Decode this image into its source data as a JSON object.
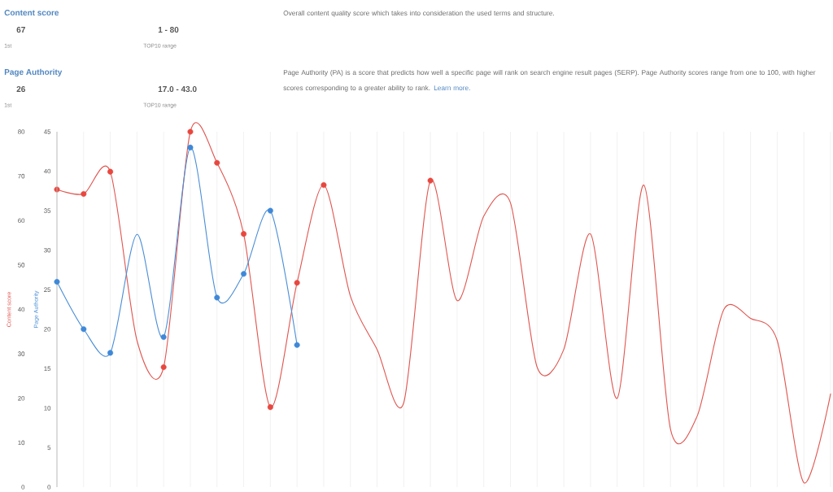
{
  "chart_data": [
    {
      "type": "other",
      "title": "Content score",
      "annotations": [
        "67",
        "1st",
        "1 - 80",
        "TOP10 range",
        "Overall content quality score which takes into consideration the used terms and structure."
      ]
    },
    {
      "type": "other",
      "title": "Page Authority",
      "annotations": [
        "26",
        "1st",
        "17.0 - 43.0",
        "TOP10 range",
        "Page Authority (PA) is a score that predicts how well a specific page will rank on search engine result pages (SERP). Page Authority scores range from one to 100, with higher scores corresponding to a greater ability to rank.",
        "Learn more."
      ]
    },
    {
      "type": "line",
      "categories": [
        null,
        null,
        null,
        null,
        null,
        null,
        null,
        null,
        null,
        null,
        null,
        null,
        null,
        null,
        null,
        null,
        null,
        null,
        null,
        null,
        null,
        null,
        null,
        null,
        null,
        null,
        null,
        null,
        null,
        null
      ],
      "ylabel": "Content score",
      "y2label": "Page Authority",
      "ylim": [
        0,
        80
      ],
      "yticks": [
        0,
        10,
        20,
        30,
        40,
        50,
        60,
        70,
        80
      ],
      "y2lim": [
        0,
        45
      ],
      "y2ticks": [
        0,
        5,
        10,
        15,
        20,
        25,
        30,
        35,
        40,
        45
      ],
      "grid": "x",
      "series": [
        {
          "type": "line",
          "marker": "none",
          "color": "#e0554f",
          "values": [
            67,
            66,
            71,
            33,
            27,
            80,
            73,
            57,
            18,
            46,
            68,
            43,
            31,
            19,
            69,
            42,
            61,
            64,
            27,
            31,
            57,
            20,
            68,
            13,
            16,
            40,
            38,
            33,
            1,
            21
          ]
        },
        {
          "type": "scatter",
          "marker": "circle",
          "color": "#e8473f",
          "values": [
            67,
            66,
            71,
            null,
            27,
            80,
            73,
            57,
            18,
            46,
            68,
            null,
            null,
            null,
            69,
            null,
            null,
            null,
            null,
            null,
            null,
            null,
            null,
            null,
            null,
            null,
            null,
            null,
            null,
            null
          ]
        },
        {
          "type": "line",
          "axis": "y2",
          "marker": "none",
          "color": "#4a8ed6",
          "values": [
            26,
            20,
            17,
            32,
            19,
            43,
            24,
            27,
            35,
            18,
            null,
            null,
            null,
            null,
            null,
            null,
            null,
            null,
            null,
            null,
            null,
            null,
            null,
            null,
            null,
            null,
            null,
            null,
            null,
            null
          ]
        },
        {
          "type": "scatter",
          "axis": "y2",
          "marker": "circle",
          "color": "#3f88d8",
          "values": [
            26,
            20,
            17,
            null,
            19,
            43,
            24,
            27,
            35,
            18,
            null,
            null,
            null,
            null,
            null,
            null,
            null,
            null,
            null,
            null,
            null,
            null,
            null,
            null,
            null,
            null,
            null,
            null,
            null,
            null
          ]
        }
      ]
    }
  ]
}
